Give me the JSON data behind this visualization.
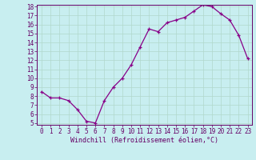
{
  "x": [
    0,
    1,
    2,
    3,
    4,
    5,
    6,
    7,
    8,
    9,
    10,
    11,
    12,
    13,
    14,
    15,
    16,
    17,
    18,
    19,
    20,
    21,
    22,
    23
  ],
  "y": [
    8.5,
    7.8,
    7.8,
    7.5,
    6.5,
    5.2,
    5.0,
    7.5,
    9.0,
    10.0,
    11.5,
    13.5,
    15.5,
    15.2,
    16.2,
    16.5,
    16.8,
    17.5,
    18.2,
    18.0,
    17.2,
    16.5,
    14.8,
    12.2
  ],
  "ylim_min": 5,
  "ylim_max": 18,
  "yticks": [
    5,
    6,
    7,
    8,
    9,
    10,
    11,
    12,
    13,
    14,
    15,
    16,
    17,
    18
  ],
  "xticks": [
    0,
    1,
    2,
    3,
    4,
    5,
    6,
    7,
    8,
    9,
    10,
    11,
    12,
    13,
    14,
    15,
    16,
    17,
    18,
    19,
    20,
    21,
    22,
    23
  ],
  "xlabel": "Windchill (Refroidissement éolien,°C)",
  "line_color": "#880088",
  "marker": "+",
  "background_color": "#c8eef0",
  "grid_color": "#b0d8cc",
  "spine_color": "#660066",
  "tick_label_color": "#660066",
  "xlabel_color": "#660066",
  "tick_label_fontsize": 5.5,
  "xlabel_fontsize": 6.0,
  "linewidth": 0.9,
  "markersize": 3.5,
  "markeredgewidth": 0.9
}
